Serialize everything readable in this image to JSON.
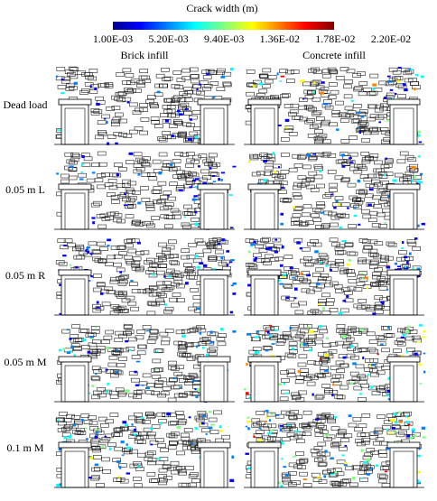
{
  "colorbar": {
    "title": "Crack width (m)",
    "ticks": [
      "1.00E-03",
      "5.20E-03",
      "9.40E-03",
      "1.36E-02",
      "1.78E-02",
      "2.20E-02"
    ]
  },
  "columns": [
    "Brick infill",
    "Concrete infill"
  ],
  "rows": [
    "Dead load",
    "0.05 m L",
    "0.05 m R",
    "0.05 m M",
    "0.1 m M"
  ]
}
